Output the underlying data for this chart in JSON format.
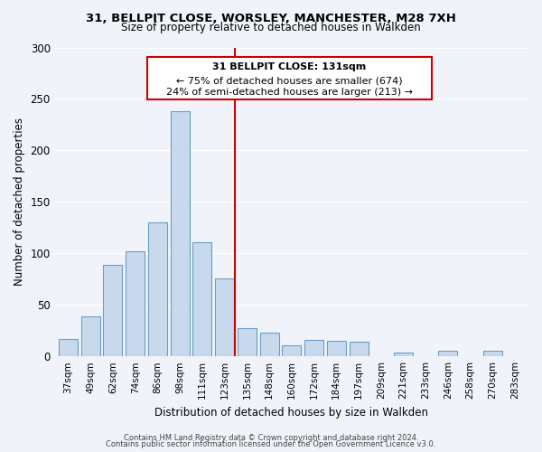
{
  "title_line1": "31, BELLPIT CLOSE, WORSLEY, MANCHESTER, M28 7XH",
  "title_line2": "Size of property relative to detached houses in Walkden",
  "xlabel": "Distribution of detached houses by size in Walkden",
  "ylabel": "Number of detached properties",
  "bar_labels": [
    "37sqm",
    "49sqm",
    "62sqm",
    "74sqm",
    "86sqm",
    "98sqm",
    "111sqm",
    "123sqm",
    "135sqm",
    "148sqm",
    "160sqm",
    "172sqm",
    "184sqm",
    "197sqm",
    "209sqm",
    "221sqm",
    "233sqm",
    "246sqm",
    "258sqm",
    "270sqm",
    "283sqm"
  ],
  "bar_values": [
    17,
    39,
    89,
    102,
    130,
    238,
    111,
    76,
    27,
    23,
    11,
    16,
    15,
    14,
    0,
    4,
    0,
    5,
    0,
    5,
    0
  ],
  "bar_color": "#c9d9ed",
  "bar_edge_color": "#6a9ec5",
  "vline_color": "#cc0000",
  "annotation_title": "31 BELLPIT CLOSE: 131sqm",
  "annotation_line1": "← 75% of detached houses are smaller (674)",
  "annotation_line2": "24% of semi-detached houses are larger (213) →",
  "annotation_box_color": "#cc0000",
  "ylim": [
    0,
    300
  ],
  "yticks": [
    0,
    50,
    100,
    150,
    200,
    250,
    300
  ],
  "footer_line1": "Contains HM Land Registry data © Crown copyright and database right 2024.",
  "footer_line2": "Contains public sector information licensed under the Open Government Licence v3.0.",
  "bg_color": "#f0f4fa",
  "grid_color": "#ffffff"
}
